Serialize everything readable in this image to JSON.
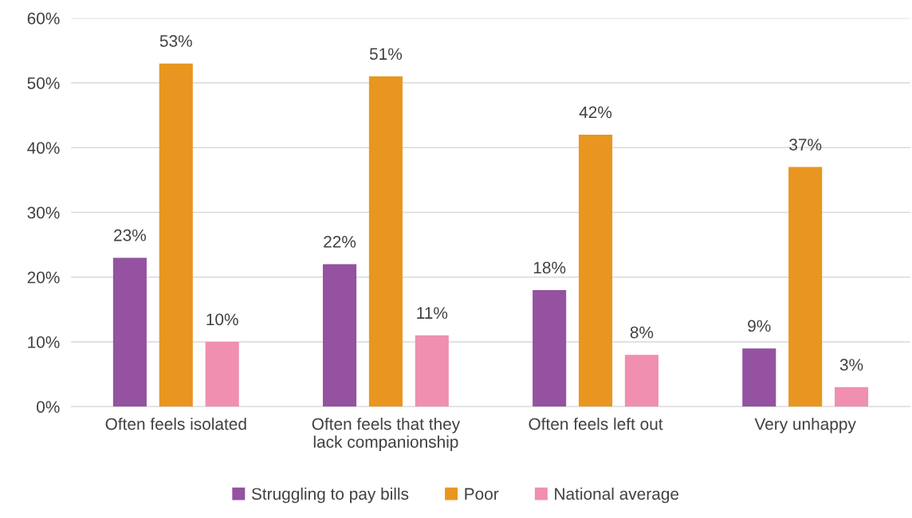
{
  "chart_data": {
    "type": "bar",
    "categories": [
      "Often feels isolated",
      "Often feels that they\nlack companionship",
      "Often feels left out",
      "Very unhappy"
    ],
    "series": [
      {
        "name": "Struggling to pay bills",
        "color": "#9452a0",
        "values": [
          23,
          22,
          18,
          9
        ]
      },
      {
        "name": "Poor",
        "color": "#e8961f",
        "values": [
          53,
          51,
          42,
          37
        ]
      },
      {
        "name": "National average",
        "color": "#f08fb0",
        "values": [
          10,
          11,
          8,
          3
        ]
      }
    ],
    "value_labels": [
      [
        "23%",
        "22%",
        "18%",
        "9%"
      ],
      [
        "53%",
        "51%",
        "42%",
        "37%"
      ],
      [
        "10%",
        "11%",
        "8%",
        "3%"
      ]
    ],
    "ylim": [
      0,
      60
    ],
    "yticks": [
      {
        "value": 0,
        "label": "0%"
      },
      {
        "value": 10,
        "label": "10%"
      },
      {
        "value": 20,
        "label": "20%"
      },
      {
        "value": 30,
        "label": "30%"
      },
      {
        "value": 40,
        "label": "40%"
      },
      {
        "value": 50,
        "label": "50%"
      },
      {
        "value": 60,
        "label": "60%"
      }
    ],
    "grid": "y",
    "legend": "bottom"
  }
}
